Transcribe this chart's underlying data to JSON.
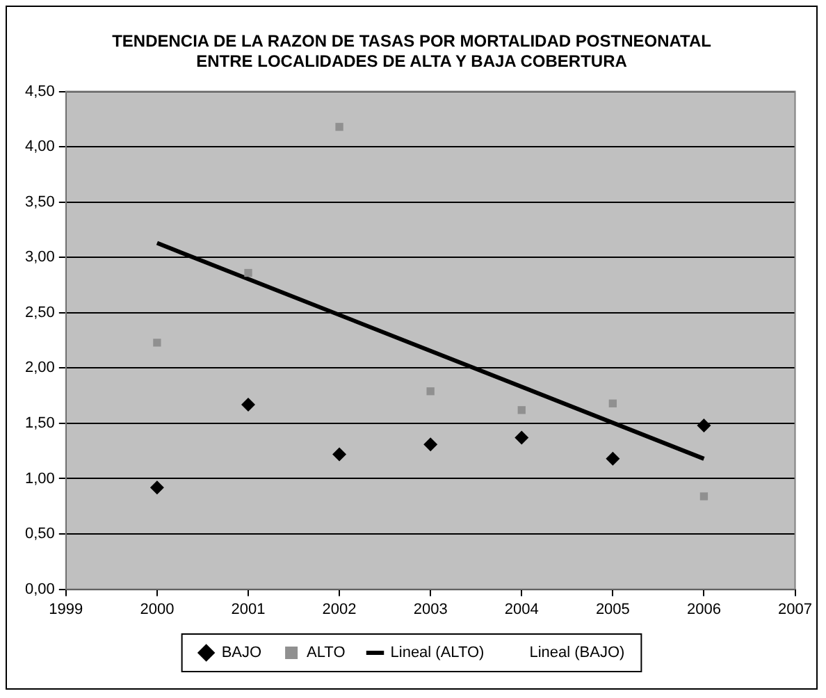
{
  "chart_data": {
    "type": "scatter",
    "title": "TENDENCIA DE LA RAZON DE TASAS POR MORTALIDAD POSTNEONATAL ENTRE LOCALIDADES DE ALTA Y BAJA COBERTURA",
    "x": [
      2000,
      2001,
      2002,
      2003,
      2004,
      2005,
      2006
    ],
    "series": [
      {
        "name": "BAJO",
        "color": "#000000",
        "marker": "diamond",
        "values": [
          0.92,
          1.67,
          1.22,
          1.31,
          1.37,
          1.18,
          1.48
        ]
      },
      {
        "name": "ALTO",
        "color": "#909090",
        "marker": "square",
        "values": [
          2.23,
          2.86,
          4.18,
          1.79,
          1.62,
          1.68,
          0.84
        ]
      },
      {
        "name": "Lineal (ALTO)",
        "type": "line",
        "color": "#000000",
        "marker": "none",
        "x": [
          2000,
          2006
        ],
        "values": [
          3.13,
          1.18
        ]
      },
      {
        "name": "Lineal (BAJO)",
        "type": "line",
        "marker": "none",
        "values": [
          null,
          null,
          null,
          null,
          null,
          null,
          null
        ]
      }
    ],
    "xlim": [
      1999,
      2007
    ],
    "xticks": [
      1999,
      2000,
      2001,
      2002,
      2003,
      2004,
      2005,
      2006,
      2007
    ],
    "ylim": [
      0,
      4.5
    ],
    "yticks": [
      {
        "value": 0,
        "label": "0,00"
      },
      {
        "value": 0.5,
        "label": "0,50"
      },
      {
        "value": 1,
        "label": "1,00"
      },
      {
        "value": 1.5,
        "label": "1,50"
      },
      {
        "value": 2,
        "label": "2,00"
      },
      {
        "value": 2.5,
        "label": "2,50"
      },
      {
        "value": 3,
        "label": "3,00"
      },
      {
        "value": 3.5,
        "label": "3,50"
      },
      {
        "value": 4,
        "label": "4,00"
      },
      {
        "value": 4.5,
        "label": "4,50"
      }
    ],
    "grid": "y",
    "legend": "bottom"
  }
}
